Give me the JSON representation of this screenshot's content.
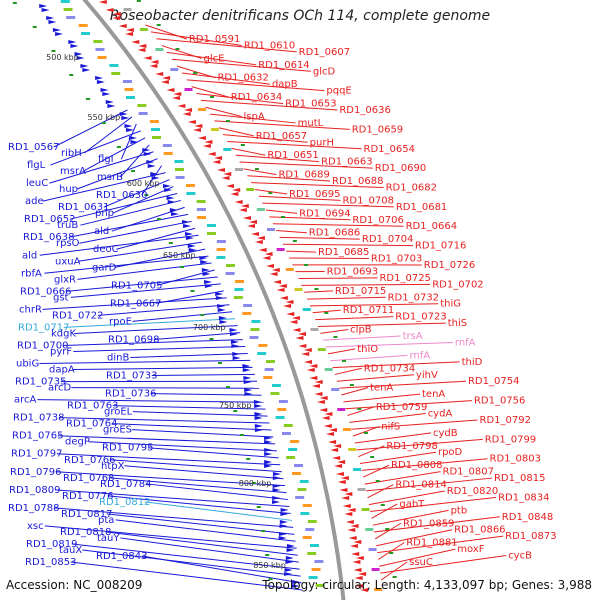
{
  "title": "Roseobacter denitrificans OCh 114, complete genome",
  "footer": {
    "accession_label": "Accession:",
    "accession": "NC_008209",
    "topology_label": "Topology:",
    "topology": "circular;",
    "length_label": "Length:",
    "length": "4,133,097 bp;",
    "genes_label": "Genes:",
    "genes": "3,988"
  },
  "colors": {
    "left_strand": "#1818d8",
    "right_strand": "#e82020",
    "highlight_left": "#33aadd",
    "highlight_right": "#ee88cc",
    "axis": "#999999",
    "tick_marks": "#229922"
  },
  "scale_ticks": [
    "500 kbp",
    "550 kbp",
    "600 kbp",
    "650 kbp",
    "700 kbp",
    "750 kbp",
    "800 kbp",
    "850 kbp"
  ],
  "left_labels": [
    "RD1_0567",
    "ribH",
    "flgI",
    "flgL",
    "msrA",
    "msrB",
    "leuC",
    "hup",
    "RD1_0630",
    "ade",
    "RD1_0631",
    "pnp",
    "RD1_0652",
    "truB",
    "ald",
    "RD1_0638",
    "rpsO",
    "deoC",
    "ald",
    "uxuA",
    "garD",
    "rbfA",
    "glxR",
    "RD1_0705",
    "RD1_0666",
    "gst",
    "RD1_0667",
    "chrR",
    "RD1_0722",
    "rpoE",
    "RD1_0717",
    "kdgK",
    "RD1_0698",
    "RD1_0700",
    "pyrF",
    "dinB",
    "ubiG",
    "dapA",
    "RD1_0733",
    "RD1_0735",
    "arcD",
    "RD1_0736",
    "arcA",
    "RD1_0763",
    "groEL",
    "RD1_0738",
    "RD1_0764",
    "groES",
    "RD1_0765",
    "degP",
    "RD1_0795",
    "RD1_0797",
    "RD1_0766",
    "htpX",
    "RD1_0796",
    "RD1_0768",
    "RD1_0784",
    "RD1_0809",
    "RD1_0776",
    "RD1_0812",
    "RD1_0788",
    "RD1_0817",
    "pta",
    "xsc",
    "RD1_0818",
    "tauY",
    "RD1_0819",
    "tauX",
    "RD1_0843",
    "RD1_0853"
  ],
  "right_labels": [
    "RD1_0591",
    "RD1_0610",
    "RD1_0607",
    "glcE",
    "RD1_0614",
    "glcD",
    "RD1_0632",
    "dapB",
    "pqqE",
    "RD1_0634",
    "RD1_0653",
    "RD1_0636",
    "lspA",
    "mutL",
    "RD1_0659",
    "RD1_0657",
    "purH",
    "RD1_0654",
    "RD1_0651",
    "RD1_0663",
    "RD1_0690",
    "RD1_0689",
    "RD1_0688",
    "RD1_0682",
    "RD1_0695",
    "RD1_0708",
    "RD1_0681",
    "RD1_0694",
    "RD1_0706",
    "RD1_0664",
    "RD1_0686",
    "RD1_0704",
    "RD1_0716",
    "RD1_0685",
    "RD1_0703",
    "RD1_0726",
    "RD1_0693",
    "RD1_0725",
    "RD1_0702",
    "RD1_0715",
    "RD1_0732",
    "thiG",
    "RD1_0711",
    "RD1_0723",
    "thiS",
    "clpB",
    "trsA",
    "rnfA",
    "thiO",
    "rnfA",
    "thiD",
    "RD1_0734",
    "yihV",
    "RD1_0754",
    "tenA",
    "tenA",
    "RD1_0756",
    "RD1_0759",
    "cydA",
    "RD1_0792",
    "nifS",
    "cydB",
    "RD1_0799",
    "RD1_0798",
    "rpoD",
    "RD1_0803",
    "RD1_0808",
    "RD1_0807",
    "RD1_0815",
    "RD1_0814",
    "RD1_0820",
    "RD1_0834",
    "gabT",
    "ptb",
    "RD1_0848",
    "RD1_0859",
    "RD1_0866",
    "RD1_0873",
    "RD1_0881",
    "moxF",
    "cycB",
    "ssuC"
  ]
}
